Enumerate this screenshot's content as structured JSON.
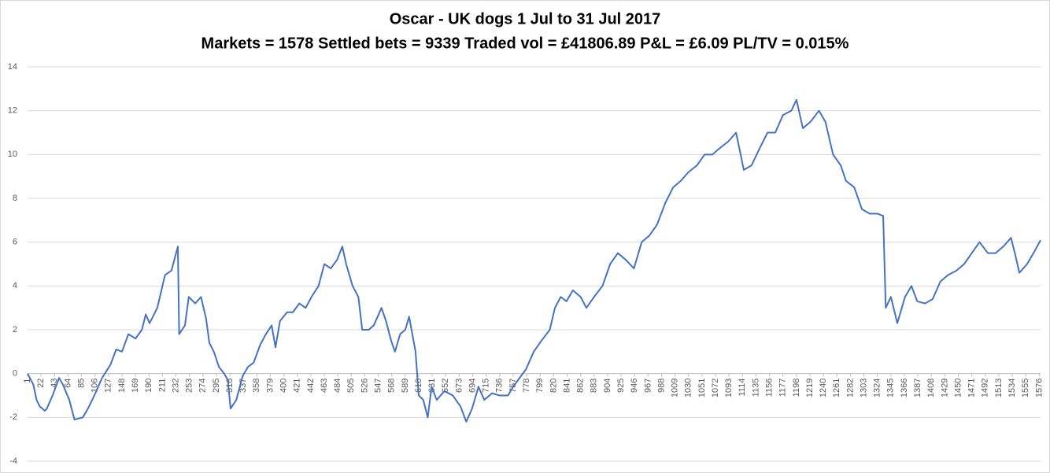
{
  "chart_data": {
    "type": "line",
    "title": "Oscar - UK dogs 1 Jul to 31 Jul 2017",
    "subtitle": "Markets = 1578  Settled bets = 9339  Traded vol = £41806.89  P&L = £6.09  PL/TV = 0.015%",
    "color": "#4472c4",
    "x": [
      1,
      10,
      15,
      20,
      28,
      31,
      40,
      50,
      56,
      66,
      74,
      87,
      95,
      105,
      117,
      130,
      139,
      148,
      158,
      169,
      179,
      185,
      191,
      203,
      215,
      225,
      235,
      237,
      246,
      252,
      262,
      271,
      279,
      284,
      291,
      299,
      307,
      313,
      317,
      326,
      336,
      344,
      353,
      363,
      372,
      381,
      387,
      394,
      405,
      414,
      424,
      434,
      443,
      454,
      463,
      473,
      483,
      491,
      497,
      507,
      516,
      522,
      532,
      540,
      552,
      559,
      567,
      573,
      581,
      589,
      595,
      605,
      610,
      617,
      624,
      630,
      638,
      650,
      663,
      675,
      684,
      693,
      703,
      712,
      724,
      736,
      749,
      757,
      767,
      777,
      789,
      801,
      814,
      822,
      831,
      840,
      850,
      862,
      871,
      883,
      896,
      908,
      920,
      932,
      945,
      957,
      969,
      981,
      994,
      1006,
      1018,
      1030,
      1043,
      1055,
      1067,
      1079,
      1092,
      1104,
      1116,
      1128,
      1141,
      1153,
      1165,
      1177,
      1190,
      1198,
      1208,
      1220,
      1233,
      1243,
      1255,
      1267,
      1275,
      1288,
      1300,
      1312,
      1324,
      1333,
      1337,
      1345,
      1355,
      1367,
      1377,
      1386,
      1398,
      1410,
      1422,
      1434,
      1447,
      1459,
      1471,
      1483,
      1496,
      1508,
      1520,
      1532,
      1538,
      1545,
      1557,
      1569,
      1578
    ],
    "values": [
      0,
      -0.5,
      -1.2,
      -1.5,
      -1.7,
      -1.6,
      -1.0,
      -0.2,
      -0.5,
      -1.2,
      -2.1,
      -2.0,
      -1.6,
      -1.0,
      -0.2,
      0.4,
      1.1,
      1.0,
      1.8,
      1.6,
      2.0,
      2.7,
      2.3,
      3.0,
      4.5,
      4.7,
      5.8,
      1.8,
      2.2,
      3.5,
      3.2,
      3.5,
      2.5,
      1.4,
      1.0,
      0.3,
      0,
      -0.3,
      -1.6,
      -1.2,
      -0.1,
      0.3,
      0.5,
      1.3,
      1.8,
      2.2,
      1.2,
      2.4,
      2.8,
      2.8,
      3.2,
      3.0,
      3.5,
      4.0,
      5.0,
      4.8,
      5.2,
      5.8,
      5.0,
      4.0,
      3.5,
      2.0,
      2.0,
      2.2,
      3.0,
      2.4,
      1.5,
      1.0,
      1.8,
      2.0,
      2.6,
      1.0,
      -1.0,
      -1.2,
      -2.0,
      -0.6,
      -1.2,
      -0.8,
      -1.0,
      -1.5,
      -2.2,
      -1.6,
      -0.6,
      -1.2,
      -0.9,
      -1.0,
      -1.0,
      -0.6,
      -0.2,
      0.2,
      1.0,
      1.5,
      2.0,
      3.0,
      3.5,
      3.3,
      3.8,
      3.5,
      3.0,
      3.5,
      4.0,
      5.0,
      5.5,
      5.2,
      4.8,
      6.0,
      6.3,
      6.8,
      7.8,
      8.5,
      8.8,
      9.2,
      9.5,
      10.0,
      10.0,
      10.3,
      10.6,
      11.0,
      9.3,
      9.5,
      10.3,
      11.0,
      11.0,
      11.8,
      12.0,
      12.5,
      11.2,
      11.5,
      12.0,
      11.5,
      10.0,
      9.5,
      8.8,
      8.5,
      7.5,
      7.3,
      7.3,
      7.2,
      3.0,
      3.5,
      2.3,
      3.5,
      4.0,
      3.3,
      3.2,
      3.4,
      4.2,
      4.5,
      4.7,
      5.0,
      5.5,
      6.0,
      5.5,
      5.5,
      5.8,
      6.2,
      5.5,
      4.6,
      5.0,
      5.6,
      6.09
    ],
    "xlim": [
      1,
      1578
    ],
    "xticks": [
      1,
      22,
      43,
      64,
      85,
      106,
      127,
      148,
      169,
      190,
      211,
      232,
      253,
      274,
      295,
      316,
      337,
      358,
      379,
      400,
      421,
      442,
      463,
      484,
      505,
      526,
      547,
      568,
      589,
      610,
      631,
      652,
      673,
      694,
      715,
      736,
      757,
      778,
      799,
      820,
      841,
      862,
      883,
      904,
      925,
      946,
      967,
      988,
      1009,
      1030,
      1051,
      1072,
      1093,
      1114,
      1135,
      1156,
      1177,
      1198,
      1219,
      1240,
      1261,
      1282,
      1303,
      1324,
      1345,
      1366,
      1387,
      1408,
      1429,
      1450,
      1471,
      1492,
      1513,
      1534,
      1555,
      1576
    ],
    "ylim": [
      -4,
      14
    ],
    "yticks": [
      -4,
      -2,
      0,
      2,
      4,
      6,
      8,
      10,
      12,
      14
    ],
    "grid": true
  }
}
